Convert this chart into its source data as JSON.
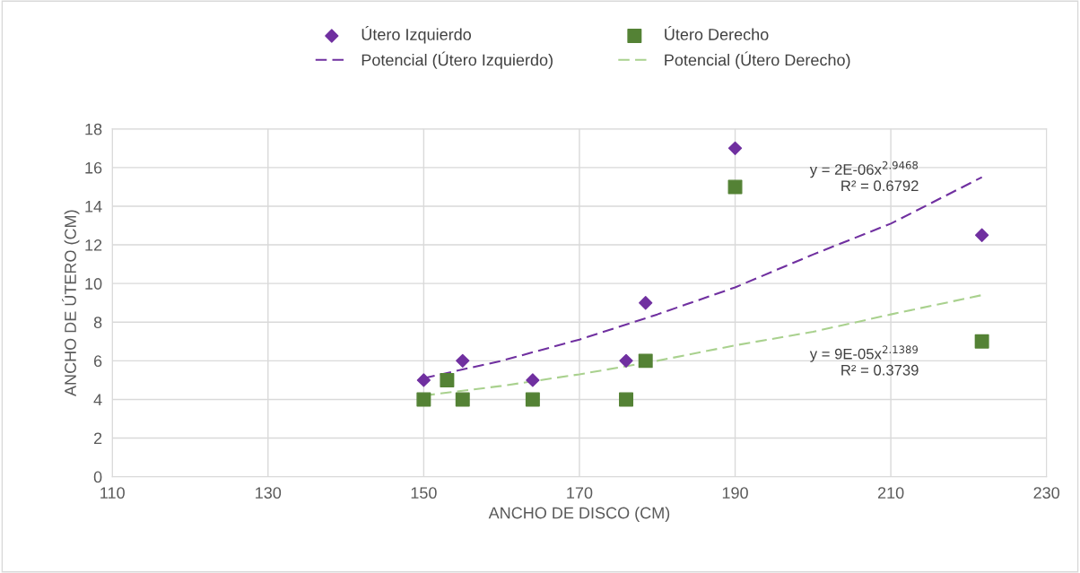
{
  "chart_data": {
    "type": "scatter",
    "xlabel": "ANCHO DE DISCO (CM)",
    "ylabel": "ANCHO DE ÚTERO (CM)",
    "xlim": [
      110,
      230
    ],
    "xticks": [
      110,
      130,
      150,
      170,
      190,
      210,
      230
    ],
    "ylim": [
      0,
      18
    ],
    "yticks": [
      0,
      2,
      4,
      6,
      8,
      10,
      12,
      14,
      16,
      18
    ],
    "grid": true,
    "legend": "top",
    "series": [
      {
        "name": "Útero Izquierdo",
        "marker": "diamond",
        "color": "#7030a0",
        "x": [
          150,
          155,
          164,
          176,
          178.5,
          190,
          221.7
        ],
        "values": [
          5,
          6,
          5,
          6,
          9,
          17,
          12.5
        ]
      },
      {
        "name": "Útero Derecho",
        "marker": "square",
        "color": "#548235",
        "x": [
          150,
          153,
          155,
          164,
          176,
          178.5,
          190,
          221.7
        ],
        "values": [
          4,
          5,
          4,
          4,
          4,
          6,
          15,
          7
        ]
      },
      {
        "name": "Potencial (Útero Izquierdo)",
        "type": "line",
        "line_style": "dashed",
        "color": "#7030a0",
        "x": [
          150,
          160,
          170,
          180,
          190,
          200,
          210,
          221.7
        ],
        "values": [
          5.1,
          6.0,
          7.1,
          8.4,
          9.8,
          11.5,
          13.1,
          15.5
        ]
      },
      {
        "name": "Potencial (Útero Derecho)",
        "type": "line",
        "line_style": "dashed",
        "color": "#a9d18e",
        "x": [
          150,
          160,
          170,
          180,
          190,
          200,
          210,
          221.7
        ],
        "values": [
          4.2,
          4.7,
          5.3,
          6.0,
          6.8,
          7.5,
          8.4,
          9.4
        ]
      }
    ],
    "annotations": [
      "y = 2E-06x$^{2.9468}$\nR² = 0.6792",
      "y = 9E-05x$^{2.1389}$\nR² = 0.3739"
    ]
  }
}
